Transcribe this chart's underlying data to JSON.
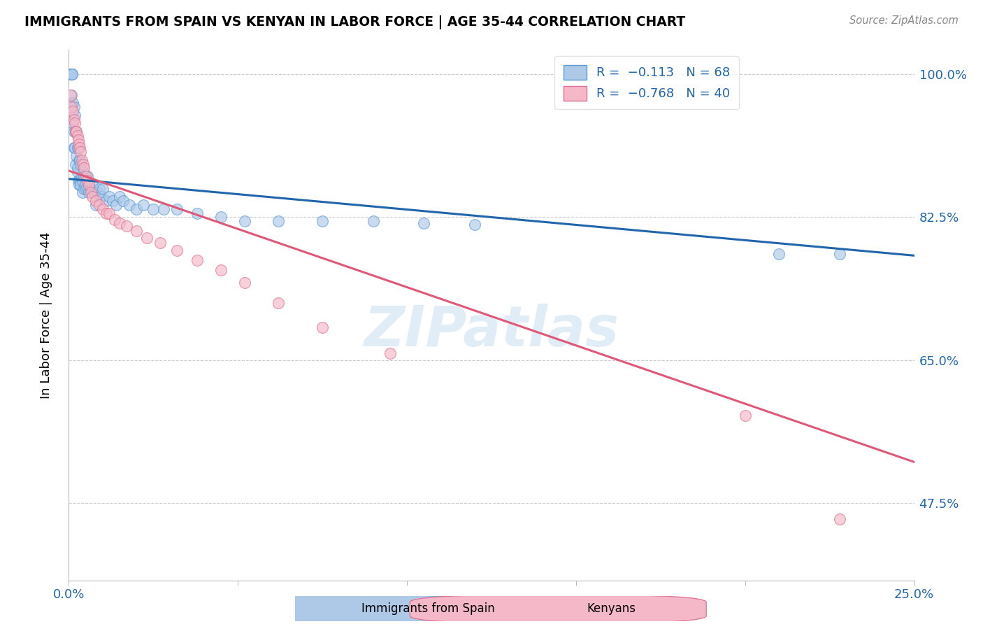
{
  "title": "IMMIGRANTS FROM SPAIN VS KENYAN IN LABOR FORCE | AGE 35-44 CORRELATION CHART",
  "source": "Source: ZipAtlas.com",
  "ylabel": "In Labor Force | Age 35-44",
  "xlim": [
    0.0,
    0.25
  ],
  "ylim": [
    0.38,
    1.03
  ],
  "xticks": [
    0.0,
    0.05,
    0.1,
    0.15,
    0.2,
    0.25
  ],
  "xtick_labels": [
    "0.0%",
    "",
    "",
    "",
    "",
    "25.0%"
  ],
  "ytick_labels": [
    "47.5%",
    "65.0%",
    "82.5%",
    "100.0%"
  ],
  "ytick_vals": [
    0.475,
    0.65,
    0.825,
    1.0
  ],
  "blue_color": "#aec9e8",
  "pink_color": "#f4b8c8",
  "blue_edge_color": "#5b9bd5",
  "pink_edge_color": "#e07090",
  "blue_line_color": "#2166ac",
  "pink_line_color": "#e05878",
  "watermark": "ZIPatlas",
  "blue_line_x0": 0.0,
  "blue_line_y0": 0.872,
  "blue_line_x1": 0.25,
  "blue_line_y1": 0.778,
  "pink_line_x0": 0.0,
  "pink_line_y0": 0.882,
  "pink_line_x1": 0.25,
  "pink_line_y1": 0.525,
  "spain_x": [
    0.0005,
    0.0005,
    0.0008,
    0.001,
    0.001,
    0.0012,
    0.0012,
    0.0015,
    0.0015,
    0.0015,
    0.0018,
    0.0018,
    0.002,
    0.002,
    0.0022,
    0.0022,
    0.0025,
    0.0025,
    0.0025,
    0.0028,
    0.0028,
    0.003,
    0.003,
    0.0032,
    0.0032,
    0.0035,
    0.0035,
    0.0038,
    0.004,
    0.004,
    0.0042,
    0.0045,
    0.0045,
    0.0048,
    0.005,
    0.0055,
    0.0058,
    0.006,
    0.0065,
    0.007,
    0.0075,
    0.008,
    0.0085,
    0.009,
    0.0095,
    0.01,
    0.011,
    0.012,
    0.013,
    0.014,
    0.015,
    0.016,
    0.018,
    0.02,
    0.022,
    0.025,
    0.028,
    0.032,
    0.038,
    0.045,
    0.052,
    0.062,
    0.075,
    0.09,
    0.105,
    0.12,
    0.21,
    0.228
  ],
  "spain_y": [
    1.0,
    1.0,
    0.975,
    1.0,
    1.0,
    0.965,
    0.94,
    0.96,
    0.93,
    0.91,
    0.95,
    0.91,
    0.93,
    0.89,
    0.93,
    0.9,
    0.91,
    0.88,
    0.885,
    0.91,
    0.87,
    0.895,
    0.865,
    0.895,
    0.87,
    0.89,
    0.865,
    0.875,
    0.87,
    0.855,
    0.88,
    0.86,
    0.875,
    0.865,
    0.86,
    0.875,
    0.86,
    0.855,
    0.86,
    0.865,
    0.855,
    0.84,
    0.855,
    0.86,
    0.85,
    0.86,
    0.845,
    0.85,
    0.845,
    0.84,
    0.85,
    0.845,
    0.84,
    0.835,
    0.84,
    0.835,
    0.835,
    0.835,
    0.83,
    0.825,
    0.82,
    0.82,
    0.82,
    0.82,
    0.818,
    0.816,
    0.78,
    0.78
  ],
  "kenya_x": [
    0.0005,
    0.0008,
    0.0012,
    0.0015,
    0.0018,
    0.002,
    0.0022,
    0.0025,
    0.0028,
    0.003,
    0.0032,
    0.0035,
    0.0038,
    0.0042,
    0.0045,
    0.005,
    0.0055,
    0.006,
    0.0065,
    0.007,
    0.008,
    0.009,
    0.01,
    0.011,
    0.012,
    0.0135,
    0.015,
    0.017,
    0.02,
    0.023,
    0.027,
    0.032,
    0.038,
    0.045,
    0.052,
    0.062,
    0.075,
    0.095,
    0.2,
    0.228
  ],
  "kenya_y": [
    0.975,
    0.96,
    0.955,
    0.945,
    0.94,
    0.93,
    0.93,
    0.925,
    0.92,
    0.915,
    0.91,
    0.905,
    0.895,
    0.89,
    0.885,
    0.875,
    0.87,
    0.865,
    0.855,
    0.85,
    0.845,
    0.84,
    0.835,
    0.83,
    0.83,
    0.822,
    0.818,
    0.814,
    0.808,
    0.8,
    0.794,
    0.784,
    0.772,
    0.76,
    0.745,
    0.72,
    0.69,
    0.658,
    0.582,
    0.455
  ]
}
